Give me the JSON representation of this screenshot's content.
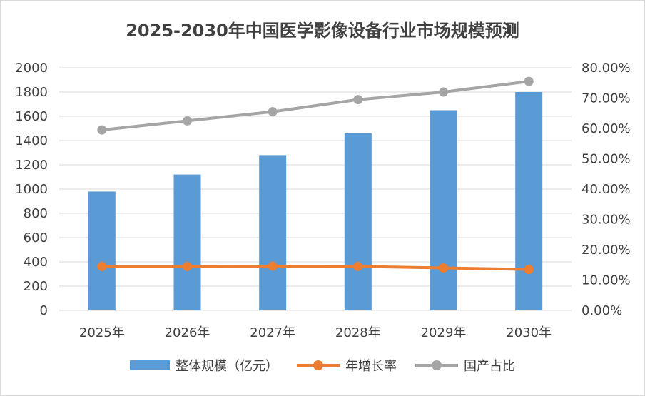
{
  "chart_data": {
    "type": "bar",
    "title": "2025-2030年中国医学影像设备行业市场规模预测",
    "categories": [
      "2025年",
      "2026年",
      "2027年",
      "2028年",
      "2029年",
      "2030年"
    ],
    "series": [
      {
        "name": "整体规模（亿元）",
        "type": "bar",
        "axis": "left",
        "color": "#5b9bd5",
        "values": [
          980,
          1120,
          1280,
          1460,
          1650,
          1800
        ]
      },
      {
        "name": "年增长率",
        "type": "line",
        "axis": "right",
        "color": "#ed7d31",
        "values": [
          0.145,
          0.145,
          0.146,
          0.145,
          0.14,
          0.135
        ]
      },
      {
        "name": "国产占比",
        "type": "line",
        "axis": "right",
        "color": "#a5a5a5",
        "values": [
          0.595,
          0.625,
          0.655,
          0.695,
          0.72,
          0.755
        ]
      }
    ],
    "y_left": {
      "ylim": [
        0,
        2000
      ],
      "ticks": [
        "0",
        "200",
        "400",
        "600",
        "800",
        "1000",
        "1200",
        "1400",
        "1600",
        "1800",
        "2000"
      ]
    },
    "y_right": {
      "ylim": [
        0,
        0.8
      ],
      "ticks": [
        "0.00%",
        "10.00%",
        "20.00%",
        "30.00%",
        "40.00%",
        "50.00%",
        "60.00%",
        "70.00%",
        "80.00%"
      ]
    },
    "grid": true,
    "legend": "bottom"
  }
}
